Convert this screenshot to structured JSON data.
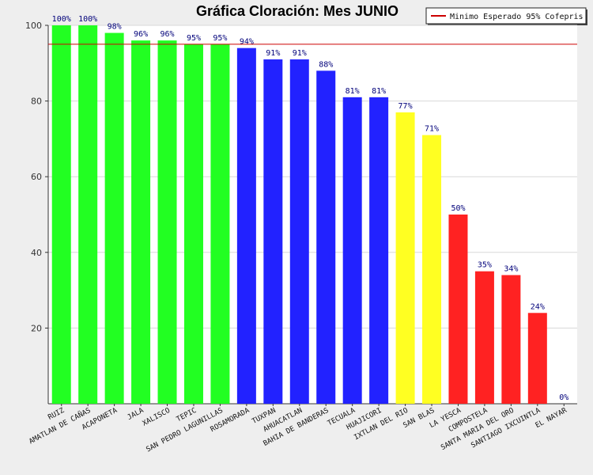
{
  "chart_data": {
    "type": "bar",
    "title": "Gráfica Cloración: Mes JUNIO",
    "xlabel": "",
    "ylabel": "",
    "ylim": [
      0,
      100
    ],
    "yticks": [
      20,
      40,
      60,
      80,
      100
    ],
    "grid": true,
    "legend_position": "top-right",
    "categories": [
      "RUIZ",
      "AMATLAN DE CAÑAS",
      "ACAPONETA",
      "JALA",
      "XALISCO",
      "TEPIC",
      "SAN PEDRO LAGUNILLAS",
      "ROSAMORADA",
      "TUXPAN",
      "AHUACATLAN",
      "BAHIA DE BANDERAS",
      "TECUALA",
      "HUAJICORI",
      "IXTLAN DEL RIO",
      "SAN BLAS",
      "LA YESCA",
      "COMPOSTELA",
      "SANTA MARIA DEL ORO",
      "SANTIAGO IXCUINTLA",
      "EL NAYAR"
    ],
    "values": [
      100,
      100,
      98,
      96,
      96,
      95,
      95,
      94,
      91,
      91,
      88,
      81,
      81,
      77,
      71,
      50,
      35,
      34,
      24,
      0
    ],
    "data_labels": [
      "100%",
      "100%",
      "98%",
      "96%",
      "96%",
      "95%",
      "95%",
      "94%",
      "91%",
      "91%",
      "88%",
      "81%",
      "81%",
      "77%",
      "71%",
      "50%",
      "35%",
      "34%",
      "24%",
      "0%"
    ],
    "bar_colors": [
      "#22ff22",
      "#22ff22",
      "#22ff22",
      "#22ff22",
      "#22ff22",
      "#22ff22",
      "#22ff22",
      "#2222ff",
      "#2222ff",
      "#2222ff",
      "#2222ff",
      "#2222ff",
      "#2222ff",
      "#ffff22",
      "#ffff22",
      "#ff2222",
      "#ff2222",
      "#ff2222",
      "#ff2222",
      "#ff2222"
    ],
    "reference_line": {
      "label": "Minimo Esperado 95% Cofepris",
      "value": 95,
      "color": "#cc0000"
    }
  }
}
